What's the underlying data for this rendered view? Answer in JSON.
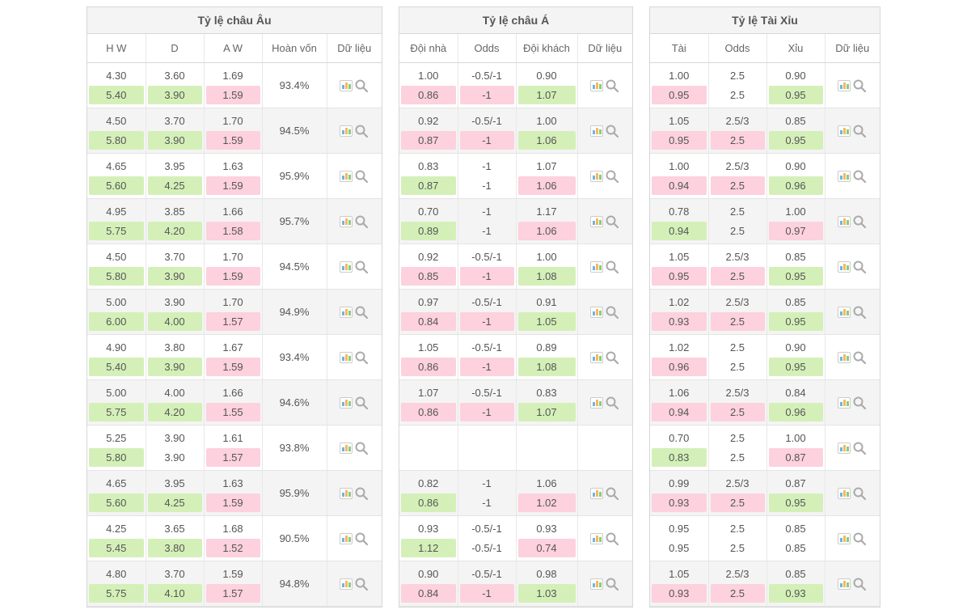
{
  "colors": {
    "row_white": "#ffffff",
    "row_gray": "#f4f4f4",
    "border": "#d7d7d7",
    "hl_green": "#d4f0b8",
    "hl_pink": "#fdd1de",
    "text": "#555555"
  },
  "panels": {
    "au": {
      "title": "Tỷ lệ châu Âu",
      "columns": [
        "H W",
        "D",
        "A W",
        "Hoàn vốn",
        "Dữ liệu"
      ],
      "rows": [
        {
          "hw": [
            "4.30",
            "5.40"
          ],
          "hwHl": [
            "",
            "green"
          ],
          "d": [
            "3.60",
            "3.90"
          ],
          "dHl": [
            "",
            "green"
          ],
          "aw": [
            "1.69",
            "1.59"
          ],
          "awHl": [
            "",
            "pink"
          ],
          "ret": "93.4%"
        },
        {
          "hw": [
            "4.50",
            "5.80"
          ],
          "hwHl": [
            "",
            "green"
          ],
          "d": [
            "3.70",
            "3.90"
          ],
          "dHl": [
            "",
            "green"
          ],
          "aw": [
            "1.70",
            "1.59"
          ],
          "awHl": [
            "",
            "pink"
          ],
          "ret": "94.5%"
        },
        {
          "hw": [
            "4.65",
            "5.60"
          ],
          "hwHl": [
            "",
            "green"
          ],
          "d": [
            "3.95",
            "4.25"
          ],
          "dHl": [
            "",
            "green"
          ],
          "aw": [
            "1.63",
            "1.59"
          ],
          "awHl": [
            "",
            "pink"
          ],
          "ret": "95.9%"
        },
        {
          "hw": [
            "4.95",
            "5.75"
          ],
          "hwHl": [
            "",
            "green"
          ],
          "d": [
            "3.85",
            "4.20"
          ],
          "dHl": [
            "",
            "green"
          ],
          "aw": [
            "1.66",
            "1.58"
          ],
          "awHl": [
            "",
            "pink"
          ],
          "ret": "95.7%"
        },
        {
          "hw": [
            "4.50",
            "5.80"
          ],
          "hwHl": [
            "",
            "green"
          ],
          "d": [
            "3.70",
            "3.90"
          ],
          "dHl": [
            "",
            "green"
          ],
          "aw": [
            "1.70",
            "1.59"
          ],
          "awHl": [
            "",
            "pink"
          ],
          "ret": "94.5%"
        },
        {
          "hw": [
            "5.00",
            "6.00"
          ],
          "hwHl": [
            "",
            "green"
          ],
          "d": [
            "3.90",
            "4.00"
          ],
          "dHl": [
            "",
            "green"
          ],
          "aw": [
            "1.70",
            "1.57"
          ],
          "awHl": [
            "",
            "pink"
          ],
          "ret": "94.9%"
        },
        {
          "hw": [
            "4.90",
            "5.40"
          ],
          "hwHl": [
            "",
            "green"
          ],
          "d": [
            "3.80",
            "3.90"
          ],
          "dHl": [
            "",
            "green"
          ],
          "aw": [
            "1.67",
            "1.59"
          ],
          "awHl": [
            "",
            "pink"
          ],
          "ret": "93.4%"
        },
        {
          "hw": [
            "5.00",
            "5.75"
          ],
          "hwHl": [
            "",
            "green"
          ],
          "d": [
            "4.00",
            "4.20"
          ],
          "dHl": [
            "",
            "green"
          ],
          "aw": [
            "1.66",
            "1.55"
          ],
          "awHl": [
            "",
            "pink"
          ],
          "ret": "94.6%"
        },
        {
          "hw": [
            "5.25",
            "5.80"
          ],
          "hwHl": [
            "",
            "green"
          ],
          "d": [
            "3.90",
            "3.90"
          ],
          "dHl": [
            "",
            ""
          ],
          "aw": [
            "1.61",
            "1.57"
          ],
          "awHl": [
            "",
            "pink"
          ],
          "ret": "93.8%"
        },
        {
          "hw": [
            "4.65",
            "5.60"
          ],
          "hwHl": [
            "",
            "green"
          ],
          "d": [
            "3.95",
            "4.25"
          ],
          "dHl": [
            "",
            "green"
          ],
          "aw": [
            "1.63",
            "1.59"
          ],
          "awHl": [
            "",
            "pink"
          ],
          "ret": "95.9%"
        },
        {
          "hw": [
            "4.25",
            "5.45"
          ],
          "hwHl": [
            "",
            "green"
          ],
          "d": [
            "3.65",
            "3.80"
          ],
          "dHl": [
            "",
            "green"
          ],
          "aw": [
            "1.68",
            "1.52"
          ],
          "awHl": [
            "",
            "pink"
          ],
          "ret": "90.5%"
        },
        {
          "hw": [
            "4.80",
            "5.75"
          ],
          "hwHl": [
            "",
            "green"
          ],
          "d": [
            "3.70",
            "4.10"
          ],
          "dHl": [
            "",
            "green"
          ],
          "aw": [
            "1.59",
            "1.57"
          ],
          "awHl": [
            "",
            "pink"
          ],
          "ret": "94.8%"
        }
      ]
    },
    "a": {
      "title": "Tỷ lệ châu Á",
      "columns": [
        "Đội nhà",
        "Odds",
        "Đội khách",
        "Dữ liệu"
      ],
      "rows": [
        {
          "h": [
            "1.00",
            "0.86"
          ],
          "hHl": [
            "",
            "pink"
          ],
          "o": [
            "-0.5/-1",
            "-1"
          ],
          "oHl": [
            "",
            "pink"
          ],
          "k": [
            "0.90",
            "1.07"
          ],
          "kHl": [
            "",
            "green"
          ]
        },
        {
          "h": [
            "0.92",
            "0.87"
          ],
          "hHl": [
            "",
            "pink"
          ],
          "o": [
            "-0.5/-1",
            "-1"
          ],
          "oHl": [
            "",
            "pink"
          ],
          "k": [
            "1.00",
            "1.06"
          ],
          "kHl": [
            "",
            "green"
          ]
        },
        {
          "h": [
            "0.83",
            "0.87"
          ],
          "hHl": [
            "",
            "green"
          ],
          "o": [
            "-1",
            "-1"
          ],
          "oHl": [
            "",
            ""
          ],
          "k": [
            "1.07",
            "1.06"
          ],
          "kHl": [
            "",
            "pink"
          ]
        },
        {
          "h": [
            "0.70",
            "0.89"
          ],
          "hHl": [
            "",
            "green"
          ],
          "o": [
            "-1",
            "-1"
          ],
          "oHl": [
            "",
            ""
          ],
          "k": [
            "1.17",
            "1.06"
          ],
          "kHl": [
            "",
            "pink"
          ]
        },
        {
          "h": [
            "0.92",
            "0.85"
          ],
          "hHl": [
            "",
            "pink"
          ],
          "o": [
            "-0.5/-1",
            "-1"
          ],
          "oHl": [
            "",
            "pink"
          ],
          "k": [
            "1.00",
            "1.08"
          ],
          "kHl": [
            "",
            "green"
          ]
        },
        {
          "h": [
            "0.97",
            "0.84"
          ],
          "hHl": [
            "",
            "pink"
          ],
          "o": [
            "-0.5/-1",
            "-1"
          ],
          "oHl": [
            "",
            "pink"
          ],
          "k": [
            "0.91",
            "1.05"
          ],
          "kHl": [
            "",
            "green"
          ]
        },
        {
          "h": [
            "1.05",
            "0.86"
          ],
          "hHl": [
            "",
            "pink"
          ],
          "o": [
            "-0.5/-1",
            "-1"
          ],
          "oHl": [
            "",
            "pink"
          ],
          "k": [
            "0.89",
            "1.08"
          ],
          "kHl": [
            "",
            "green"
          ]
        },
        {
          "h": [
            "1.07",
            "0.86"
          ],
          "hHl": [
            "",
            "pink"
          ],
          "o": [
            "-0.5/-1",
            "-1"
          ],
          "oHl": [
            "",
            "pink"
          ],
          "k": [
            "0.83",
            "1.07"
          ],
          "kHl": [
            "",
            "green"
          ]
        },
        {
          "empty": true
        },
        {
          "h": [
            "0.82",
            "0.86"
          ],
          "hHl": [
            "",
            "green"
          ],
          "o": [
            "-1",
            "-1"
          ],
          "oHl": [
            "",
            ""
          ],
          "k": [
            "1.06",
            "1.02"
          ],
          "kHl": [
            "",
            "pink"
          ]
        },
        {
          "h": [
            "0.93",
            "1.12"
          ],
          "hHl": [
            "",
            "green"
          ],
          "o": [
            "-0.5/-1",
            "-0.5/-1"
          ],
          "oHl": [
            "",
            ""
          ],
          "k": [
            "0.93",
            "0.74"
          ],
          "kHl": [
            "",
            "pink"
          ]
        },
        {
          "h": [
            "0.90",
            "0.84"
          ],
          "hHl": [
            "",
            "pink"
          ],
          "o": [
            "-0.5/-1",
            "-1"
          ],
          "oHl": [
            "",
            "pink"
          ],
          "k": [
            "0.98",
            "1.03"
          ],
          "kHl": [
            "",
            "green"
          ]
        }
      ]
    },
    "tx": {
      "title": "Tỷ lệ Tài Xỉu",
      "columns": [
        "Tài",
        "Odds",
        "Xỉu",
        "Dữ liệu"
      ],
      "rows": [
        {
          "t": [
            "1.00",
            "0.95"
          ],
          "tHl": [
            "",
            "pink"
          ],
          "o": [
            "2.5",
            "2.5"
          ],
          "oHl": [
            "",
            ""
          ],
          "x": [
            "0.90",
            "0.95"
          ],
          "xHl": [
            "",
            "green"
          ]
        },
        {
          "t": [
            "1.05",
            "0.95"
          ],
          "tHl": [
            "",
            "pink"
          ],
          "o": [
            "2.5/3",
            "2.5"
          ],
          "oHl": [
            "",
            "pink"
          ],
          "x": [
            "0.85",
            "0.95"
          ],
          "xHl": [
            "",
            "green"
          ]
        },
        {
          "t": [
            "1.00",
            "0.94"
          ],
          "tHl": [
            "",
            "pink"
          ],
          "o": [
            "2.5/3",
            "2.5"
          ],
          "oHl": [
            "",
            "pink"
          ],
          "x": [
            "0.90",
            "0.96"
          ],
          "xHl": [
            "",
            "green"
          ]
        },
        {
          "t": [
            "0.78",
            "0.94"
          ],
          "tHl": [
            "",
            "green"
          ],
          "o": [
            "2.5",
            "2.5"
          ],
          "oHl": [
            "",
            ""
          ],
          "x": [
            "1.00",
            "0.97"
          ],
          "xHl": [
            "",
            "pink"
          ]
        },
        {
          "t": [
            "1.05",
            "0.95"
          ],
          "tHl": [
            "",
            "pink"
          ],
          "o": [
            "2.5/3",
            "2.5"
          ],
          "oHl": [
            "",
            "pink"
          ],
          "x": [
            "0.85",
            "0.95"
          ],
          "xHl": [
            "",
            "green"
          ]
        },
        {
          "t": [
            "1.02",
            "0.93"
          ],
          "tHl": [
            "",
            "pink"
          ],
          "o": [
            "2.5/3",
            "2.5"
          ],
          "oHl": [
            "",
            "pink"
          ],
          "x": [
            "0.85",
            "0.95"
          ],
          "xHl": [
            "",
            "green"
          ]
        },
        {
          "t": [
            "1.02",
            "0.96"
          ],
          "tHl": [
            "",
            "pink"
          ],
          "o": [
            "2.5",
            "2.5"
          ],
          "oHl": [
            "",
            ""
          ],
          "x": [
            "0.90",
            "0.95"
          ],
          "xHl": [
            "",
            "green"
          ]
        },
        {
          "t": [
            "1.06",
            "0.94"
          ],
          "tHl": [
            "",
            "pink"
          ],
          "o": [
            "2.5/3",
            "2.5"
          ],
          "oHl": [
            "",
            "pink"
          ],
          "x": [
            "0.84",
            "0.96"
          ],
          "xHl": [
            "",
            "green"
          ]
        },
        {
          "t": [
            "0.70",
            "0.83"
          ],
          "tHl": [
            "",
            "green"
          ],
          "o": [
            "2.5",
            "2.5"
          ],
          "oHl": [
            "",
            ""
          ],
          "x": [
            "1.00",
            "0.87"
          ],
          "xHl": [
            "",
            "pink"
          ]
        },
        {
          "t": [
            "0.99",
            "0.93"
          ],
          "tHl": [
            "",
            "pink"
          ],
          "o": [
            "2.5/3",
            "2.5"
          ],
          "oHl": [
            "",
            "pink"
          ],
          "x": [
            "0.87",
            "0.95"
          ],
          "xHl": [
            "",
            "green"
          ]
        },
        {
          "t": [
            "0.95",
            "0.95"
          ],
          "tHl": [
            "",
            ""
          ],
          "o": [
            "2.5",
            "2.5"
          ],
          "oHl": [
            "",
            ""
          ],
          "x": [
            "0.85",
            "0.85"
          ],
          "xHl": [
            "",
            ""
          ]
        },
        {
          "t": [
            "1.05",
            "0.93"
          ],
          "tHl": [
            "",
            "pink"
          ],
          "o": [
            "2.5/3",
            "2.5"
          ],
          "oHl": [
            "",
            "pink"
          ],
          "x": [
            "0.85",
            "0.93"
          ],
          "xHl": [
            "",
            "green"
          ]
        }
      ]
    }
  }
}
